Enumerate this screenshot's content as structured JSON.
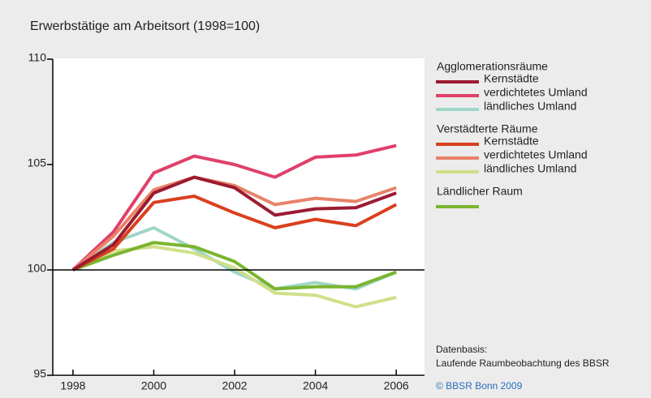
{
  "chart_data": {
    "type": "line",
    "title": "Erwerbstätige am Arbeitsort (1998=100)",
    "x": [
      1998,
      1999,
      2000,
      2001,
      2002,
      2003,
      2004,
      2005,
      2006
    ],
    "xlim": [
      1997.5,
      2006.7
    ],
    "xticks": [
      1998,
      2000,
      2002,
      2004,
      2006
    ],
    "ylim": [
      95,
      110
    ],
    "yticks": [
      95,
      100,
      105,
      110
    ],
    "reference_line": 100,
    "groups": [
      {
        "name": "Agglomerationsräume",
        "series": [
          {
            "name": "Kernstädte",
            "color": "#9b1b30",
            "values": [
              100,
              101.2,
              103.65,
              104.4,
              103.9,
              102.6,
              102.9,
              102.95,
              103.65
            ]
          },
          {
            "name": "verdichtetes Umland",
            "color": "#e0406a",
            "values": [
              100,
              101.8,
              104.6,
              105.4,
              105.0,
              104.4,
              105.35,
              105.45,
              105.9
            ]
          },
          {
            "name": "ländliches Umland",
            "color": "#9fd6c8",
            "values": [
              100,
              101.3,
              102.0,
              101.0,
              99.9,
              99.1,
              99.4,
              99.1,
              99.9
            ]
          }
        ]
      },
      {
        "name": "Verstädterte Räume",
        "series": [
          {
            "name": "Kernstädte",
            "color": "#d9401e",
            "values": [
              100,
              101.0,
              103.2,
              103.5,
              102.7,
              102.0,
              102.4,
              102.1,
              103.1
            ]
          },
          {
            "name": "verdichtetes Umland",
            "color": "#e8836a",
            "values": [
              100,
              101.6,
              103.8,
              104.4,
              104.0,
              103.1,
              103.4,
              103.25,
              103.9
            ]
          },
          {
            "name": "ländliches Umland",
            "color": "#cfe08a",
            "values": [
              100,
              100.9,
              101.1,
              100.8,
              100.1,
              98.9,
              98.8,
              98.25,
              98.7
            ]
          }
        ]
      },
      {
        "name": "Ländlicher Raum",
        "series": [
          {
            "color": "#7ab52f",
            "values": [
              100,
              100.7,
              101.3,
              101.1,
              100.4,
              99.1,
              99.2,
              99.2,
              99.9
            ]
          }
        ]
      }
    ],
    "source_label": "Datenbasis:",
    "source": "Laufende Raumbeobachtung  des BBSR",
    "copyright": "© BBSR Bonn 2009"
  }
}
